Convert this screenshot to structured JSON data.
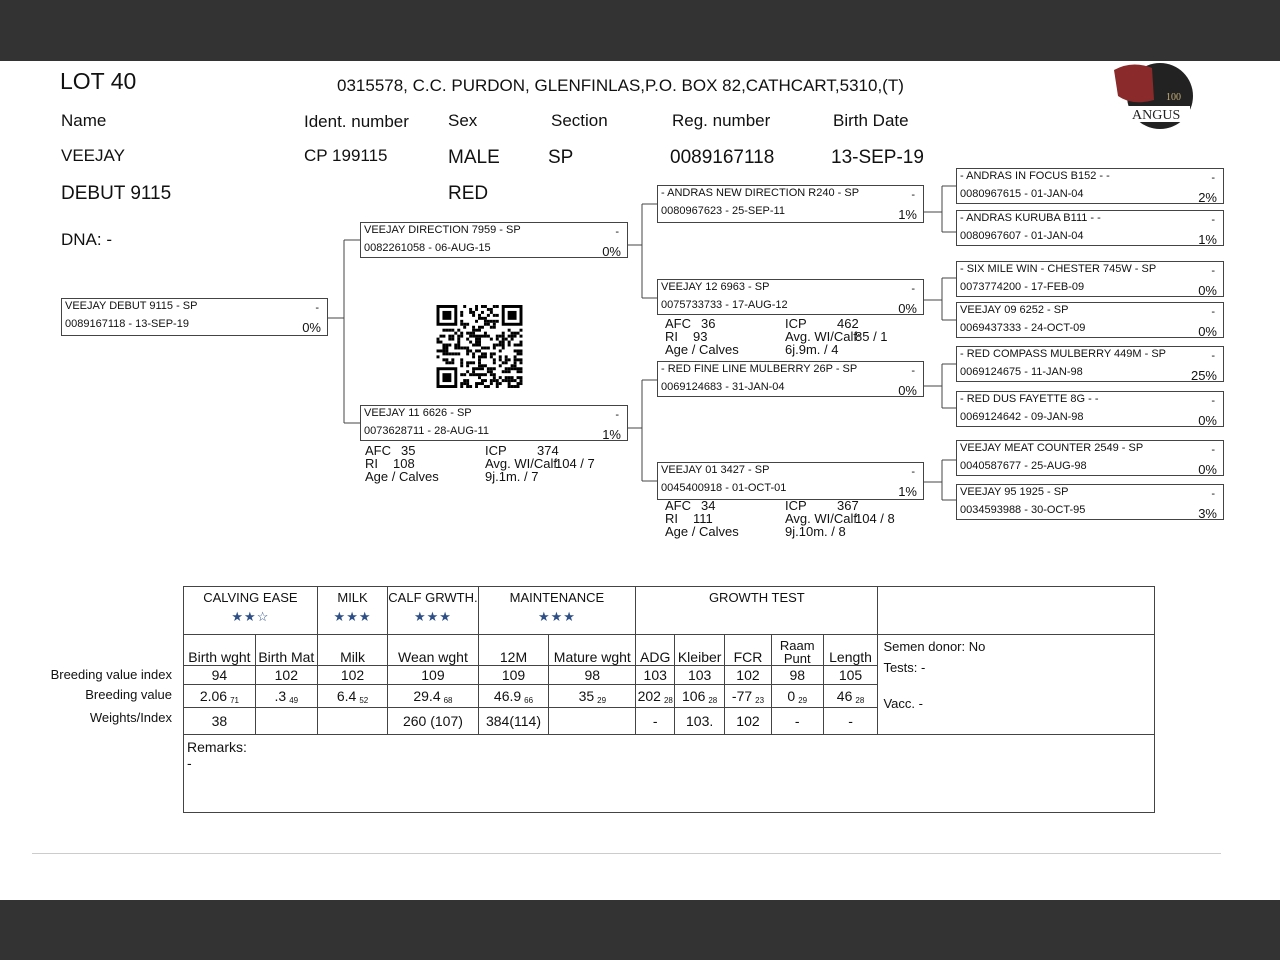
{
  "header": {
    "lot": "LOT 40",
    "breeder": "0315578, C.C. PURDON, GLENFINLAS,P.O. BOX 82,CATHCART,5310,(T)",
    "logo_text": "ANGUS",
    "logo_badge": "100"
  },
  "animal": {
    "labels": {
      "name": "Name",
      "ident": "Ident. number",
      "sex": "Sex",
      "section": "Section",
      "reg": "Reg. number",
      "birth": "Birth Date"
    },
    "name_line1": "VEEJAY",
    "name_line2": "DEBUT 9115",
    "ident": "CP  199115",
    "sex": "MALE",
    "color": "RED",
    "section": "SP",
    "reg": "0089167118",
    "birth": "13-SEP-19",
    "dna": "DNA: -"
  },
  "pedigree": [
    {
      "name": "VEEJAY DEBUT 9115 - SP",
      "reg": "0089167118 -  13-SEP-19",
      "pct": "0%",
      "mark": "-"
    },
    {
      "name": "VEEJAY DIRECTION 7959 - SP",
      "reg": "0082261058 - 06-AUG-15",
      "pct": "0%",
      "mark": "-"
    },
    {
      "name": "VEEJAY 11 6626 - SP",
      "reg": "0073628711 - 28-AUG-11",
      "pct": "1%",
      "mark": "-"
    },
    {
      "name": "- ANDRAS NEW DIRECTION R240 - SP",
      "reg": "0080967623 - 25-SEP-11",
      "pct": "1%",
      "mark": "-"
    },
    {
      "name": "VEEJAY 12 6963 - SP",
      "reg": "0075733733 - 17-AUG-12",
      "pct": "0%",
      "mark": "-"
    },
    {
      "name": "- RED FINE LINE MULBERRY 26P - SP",
      "reg": "0069124683 - 31-JAN-04",
      "pct": "0%",
      "mark": "-"
    },
    {
      "name": "VEEJAY 01 3427 - SP",
      "reg": "0045400918 - 01-OCT-01",
      "pct": "1%",
      "mark": "-"
    },
    {
      "name": "- ANDRAS IN FOCUS B152 - -",
      "reg": "0080967615 - 01-JAN-04",
      "pct": "2%",
      "mark": "-"
    },
    {
      "name": "- ANDRAS KURUBA B111 - -",
      "reg": "0080967607 - 01-JAN-04",
      "pct": "1%",
      "mark": "-"
    },
    {
      "name": "- SIX MILE WIN - CHESTER 745W - SP",
      "reg": "0073774200 - 17-FEB-09",
      "pct": "0%",
      "mark": "-"
    },
    {
      "name": "VEEJAY 09 6252 - SP",
      "reg": "0069437333 - 24-OCT-09",
      "pct": "0%",
      "mark": "-"
    },
    {
      "name": "- RED COMPASS MULBERRY 449M - SP",
      "reg": "0069124675 - 11-JAN-98",
      "pct": "25%",
      "mark": "-"
    },
    {
      "name": "- RED DUS FAYETTE 8G - -",
      "reg": "0069124642 - 09-JAN-98",
      "pct": "0%",
      "mark": "-"
    },
    {
      "name": "VEEJAY MEAT COUNTER 2549 - SP",
      "reg": "0040587677 - 25-AUG-98",
      "pct": "0%",
      "mark": "-"
    },
    {
      "name": "VEEJAY 95 1925 - SP",
      "reg": "0034593988 - 30-OCT-95",
      "pct": "3%",
      "mark": "-"
    }
  ],
  "cow_stats": [
    {
      "afc_l": "AFC",
      "afc": "35",
      "icp_l": "ICP",
      "icp": "374",
      "ri_l": "RI",
      "ri": "108",
      "avg_l": "Avg. WI/Calf:",
      "avg": "104 / 7",
      "age_l": "Age / Calves",
      "age": "9j.1m. / 7"
    },
    {
      "afc_l": "AFC",
      "afc": "36",
      "icp_l": "ICP",
      "icp": "462",
      "ri_l": "RI",
      "ri": "93",
      "avg_l": "Avg. WI/Calf:",
      "avg": "85 / 1",
      "age_l": "Age / Calves",
      "age": "6j.9m. / 4"
    },
    {
      "afc_l": "AFC",
      "afc": "34",
      "icp_l": "ICP",
      "icp": "367",
      "ri_l": "RI",
      "ri": "111",
      "avg_l": "Avg. WI/Calf:",
      "avg": "104 / 8",
      "age_l": "Age / Calves",
      "age": "9j.10m. / 8"
    }
  ],
  "breeding": {
    "groups": [
      {
        "label": "CALVING EASE",
        "stars": 2,
        "span": 2
      },
      {
        "label": "MILK",
        "stars": 3,
        "span": 1
      },
      {
        "label": "CALF GRWTH.",
        "stars": 3,
        "span": 1
      },
      {
        "label": "MAINTENANCE",
        "stars": 3,
        "span": 2
      },
      {
        "label": "GROWTH TEST",
        "stars": null,
        "span": 5
      }
    ],
    "columns": [
      "Birth wght",
      "Birth Mat",
      "Milk",
      "Wean wght",
      "12M",
      "Mature wght",
      "ADG",
      "Kleiber",
      "FCR",
      "Raam Punt",
      "Length"
    ],
    "row_labels": [
      "Breeding value index",
      "Breeding value",
      "Weights/Index"
    ],
    "index": [
      "94",
      "102",
      "102",
      "109",
      "109",
      "98",
      "103",
      "103",
      "102",
      "98",
      "105"
    ],
    "values": [
      [
        "2.06",
        "71"
      ],
      [
        ".3",
        "49"
      ],
      [
        "6.4",
        "52"
      ],
      [
        "29.4",
        "68"
      ],
      [
        "46.9",
        "66"
      ],
      [
        "35",
        "29"
      ],
      [
        "202",
        "28"
      ],
      [
        "106",
        "28"
      ],
      [
        "-77",
        "23"
      ],
      [
        "0",
        "29"
      ],
      [
        "46",
        "28"
      ]
    ],
    "weights": [
      "38",
      "",
      "",
      "260 (107)",
      "384(114)",
      "",
      "-",
      "103.",
      "102",
      "-",
      "-"
    ],
    "side": {
      "semen": "Semen donor: No",
      "tests": "Tests: -",
      "vacc": "Vacc. -"
    },
    "remarks_label": "Remarks:",
    "remarks": "-"
  },
  "colors": {
    "stars": "#2d4f86",
    "chrome": "#333333"
  }
}
